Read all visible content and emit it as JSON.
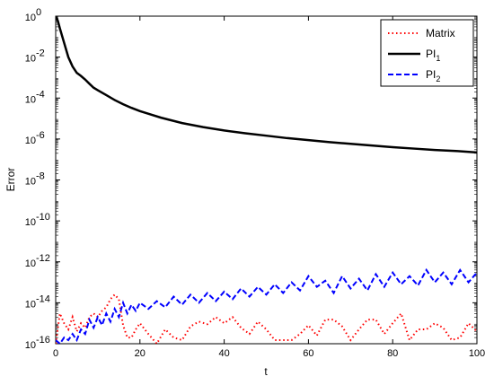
{
  "chart_data": {
    "type": "line",
    "xlabel": "t",
    "ylabel": "Error",
    "xlim": [
      0,
      100
    ],
    "ylim": [
      1e-16,
      1
    ],
    "yscale": "log",
    "x_ticks": [
      0,
      20,
      40,
      60,
      80,
      100
    ],
    "y_ticks": [
      {
        "exp": -16,
        "label": "10",
        "sup": "-16"
      },
      {
        "exp": -14,
        "label": "10",
        "sup": "-14"
      },
      {
        "exp": -12,
        "label": "10",
        "sup": "-12"
      },
      {
        "exp": -10,
        "label": "10",
        "sup": "-10"
      },
      {
        "exp": -8,
        "label": "10",
        "sup": "-8"
      },
      {
        "exp": -6,
        "label": "10",
        "sup": "-6"
      },
      {
        "exp": -4,
        "label": "10",
        "sup": "-4"
      },
      {
        "exp": -2,
        "label": "10",
        "sup": "-2"
      },
      {
        "exp": 0,
        "label": "10",
        "sup": "0"
      }
    ],
    "grid": false,
    "legend_position": "top-right",
    "series": [
      {
        "name": "Matrix",
        "name_sub": "",
        "color": "#ff0000",
        "style": "dotted",
        "x": [
          0,
          1,
          2,
          3,
          4,
          5,
          6,
          7,
          8,
          9,
          10,
          11,
          12,
          13,
          14,
          15,
          16,
          17,
          18,
          19,
          20,
          22,
          24,
          26,
          28,
          30,
          32,
          34,
          36,
          38,
          40,
          42,
          44,
          46,
          48,
          50,
          52,
          54,
          56,
          58,
          60,
          62,
          64,
          66,
          68,
          70,
          72,
          74,
          76,
          78,
          80,
          82,
          84,
          86,
          88,
          90,
          92,
          94,
          96,
          98,
          100
        ],
        "y": [
          1e-16,
          3e-15,
          1e-15,
          5e-16,
          2e-15,
          4e-16,
          1e-15,
          6e-16,
          2e-15,
          3e-15,
          2e-15,
          4e-15,
          6e-15,
          1.5e-14,
          2.5e-14,
          1.5e-14,
          8e-16,
          2e-16,
          2e-16,
          5e-16,
          1e-15,
          3e-16,
          1e-16,
          5e-16,
          2e-16,
          1.5e-16,
          7e-16,
          1.2e-15,
          9e-16,
          2e-15,
          1e-15,
          2e-15,
          6e-16,
          3e-16,
          1.2e-15,
          5e-16,
          1.5e-16,
          1.5e-16,
          1.5e-16,
          3e-16,
          8e-16,
          2.5e-16,
          1.5e-15,
          1.5e-15,
          7e-16,
          1.5e-16,
          5e-16,
          1.5e-15,
          1.5e-15,
          3e-16,
          1e-15,
          3e-15,
          1.5e-16,
          5e-16,
          5e-16,
          1e-15,
          6e-16,
          1.5e-16,
          2e-16,
          1e-15,
          4e-16
        ]
      },
      {
        "name": "PI",
        "name_sub": "1",
        "color": "#000000",
        "style": "solid",
        "x": [
          0,
          0.5,
          1,
          2,
          3,
          4,
          5,
          6,
          7,
          8,
          9,
          10,
          12,
          14,
          16,
          18,
          20,
          25,
          30,
          35,
          40,
          45,
          50,
          55,
          60,
          65,
          70,
          75,
          80,
          85,
          90,
          95,
          100
        ],
        "y": [
          1,
          0.6,
          0.25,
          0.05,
          0.01,
          0.0035,
          0.0017,
          0.0012,
          0.0008,
          0.0005,
          0.00032,
          0.00024,
          0.00014,
          8e-05,
          5e-05,
          3.3e-05,
          2.3e-05,
          1.1e-05,
          6e-06,
          3.8e-06,
          2.6e-06,
          1.9e-06,
          1.45e-06,
          1.1e-06,
          8.8e-07,
          7e-07,
          5.8e-07,
          4.8e-07,
          4e-07,
          3.4e-07,
          2.9e-07,
          2.6e-07,
          2.2e-07
        ]
      },
      {
        "name": "PI",
        "name_sub": "2",
        "color": "#0000ff",
        "style": "dashed",
        "x": [
          0,
          1,
          2,
          3,
          4,
          5,
          6,
          7,
          8,
          9,
          10,
          11,
          12,
          13,
          14,
          15,
          16,
          17,
          18,
          19,
          20,
          22,
          24,
          26,
          28,
          30,
          32,
          34,
          36,
          38,
          40,
          42,
          44,
          46,
          48,
          50,
          52,
          54,
          56,
          58,
          60,
          62,
          64,
          66,
          68,
          70,
          72,
          74,
          76,
          78,
          80,
          82,
          84,
          86,
          88,
          90,
          92,
          94,
          96,
          98,
          100
        ],
        "y": [
          1.5e-16,
          1e-16,
          2e-16,
          1.5e-16,
          3e-16,
          1.5e-16,
          5e-16,
          3e-16,
          1.5e-15,
          6e-16,
          2e-15,
          8e-16,
          3e-15,
          1.2e-15,
          5e-15,
          2e-15,
          1e-14,
          3e-15,
          8e-15,
          4e-15,
          1e-14,
          5e-15,
          1.2e-14,
          6e-15,
          2e-14,
          8e-15,
          2.5e-14,
          1e-14,
          3e-14,
          1.2e-14,
          3.5e-14,
          1.5e-14,
          5e-14,
          2e-14,
          6e-14,
          2.5e-14,
          8e-14,
          3e-14,
          1e-13,
          4e-14,
          2e-13,
          6e-14,
          1.2e-13,
          3e-14,
          2e-13,
          5e-14,
          1.5e-13,
          4e-14,
          2.5e-13,
          6e-14,
          3e-13,
          8e-14,
          2e-13,
          7e-14,
          4e-13,
          1e-13,
          3e-13,
          8e-14,
          4e-13,
          1e-13,
          3e-13
        ]
      }
    ]
  }
}
